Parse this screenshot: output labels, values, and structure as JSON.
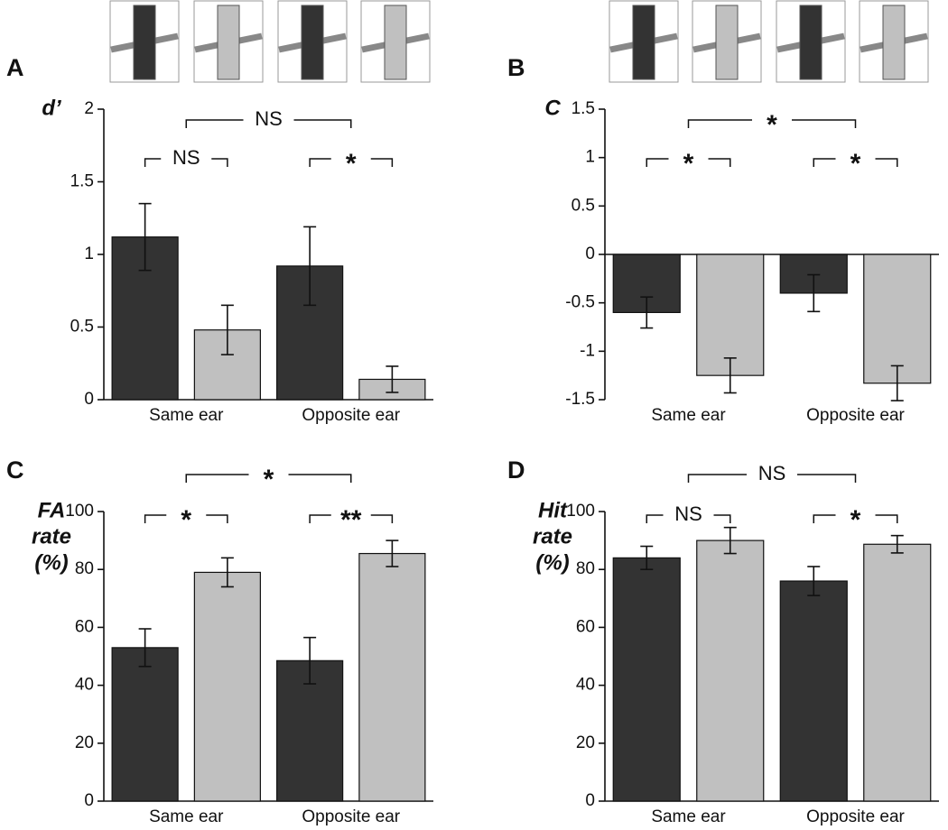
{
  "chart_data": [
    {
      "type": "bar",
      "panel": "A",
      "ylabel": [
        "d’"
      ],
      "categories": [
        "Same ear",
        "Opposite ear"
      ],
      "series": [
        {
          "color": "#333333",
          "values": [
            1.12,
            0.92
          ],
          "errors": [
            0.23,
            0.27
          ]
        },
        {
          "color": "#c0c0c0",
          "values": [
            0.48,
            0.14
          ],
          "errors": [
            0.17,
            0.09
          ]
        }
      ],
      "ylim": [
        0,
        2
      ],
      "yticks": [
        0,
        0.5,
        1,
        1.5,
        2
      ],
      "significance_within": [
        "NS",
        "*"
      ],
      "significance_between": "NS"
    },
    {
      "type": "bar",
      "panel": "B",
      "ylabel": [
        "C"
      ],
      "categories": [
        "Same ear",
        "Opposite ear"
      ],
      "series": [
        {
          "color": "#333333",
          "values": [
            -0.6,
            -0.4
          ],
          "errors": [
            0.16,
            0.19
          ]
        },
        {
          "color": "#c0c0c0",
          "values": [
            -1.25,
            -1.33
          ],
          "errors": [
            0.18,
            0.18
          ]
        }
      ],
      "ylim": [
        -1.5,
        1.5
      ],
      "yticks": [
        -1.5,
        -1,
        -0.5,
        0,
        0.5,
        1,
        1.5
      ],
      "significance_within": [
        "*",
        "*"
      ],
      "significance_between": "*"
    },
    {
      "type": "bar",
      "panel": "C",
      "ylabel": [
        "FA",
        "rate",
        "(%)"
      ],
      "categories": [
        "Same ear",
        "Opposite ear"
      ],
      "series": [
        {
          "color": "#333333",
          "values": [
            53,
            48.5
          ],
          "errors": [
            6.5,
            8
          ]
        },
        {
          "color": "#c0c0c0",
          "values": [
            79,
            85.5
          ],
          "errors": [
            5,
            4.5
          ]
        }
      ],
      "ylim": [
        0,
        100
      ],
      "yticks": [
        0,
        20,
        40,
        60,
        80,
        100
      ],
      "significance_within": [
        "*",
        "**"
      ],
      "significance_between": "*"
    },
    {
      "type": "bar",
      "panel": "D",
      "ylabel": [
        "Hit",
        "rate",
        "(%)"
      ],
      "categories": [
        "Same ear",
        "Opposite ear"
      ],
      "series": [
        {
          "color": "#333333",
          "values": [
            84,
            76
          ],
          "errors": [
            4,
            5
          ]
        },
        {
          "color": "#c0c0c0",
          "values": [
            90,
            88.7
          ],
          "errors": [
            4.5,
            3
          ]
        }
      ],
      "ylim": [
        0,
        100
      ],
      "yticks": [
        0,
        20,
        40,
        60,
        80,
        100
      ],
      "significance_within": [
        "NS",
        "*"
      ],
      "significance_between": "NS"
    }
  ]
}
